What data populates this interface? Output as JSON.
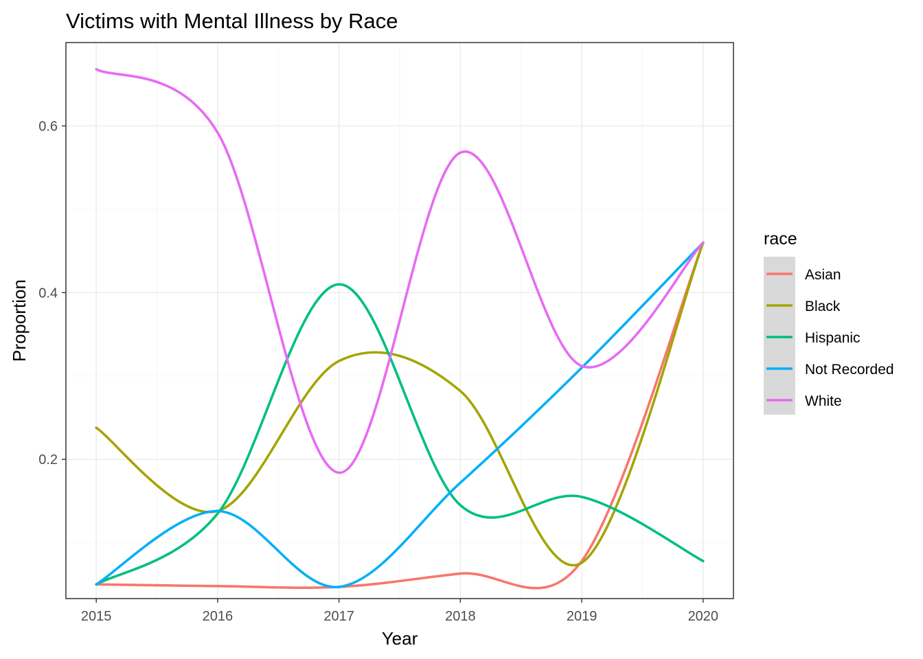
{
  "chart_data": {
    "type": "line",
    "title": "Victims with Mental Illness by Race",
    "xlabel": "Year",
    "ylabel": "Proportion",
    "x": [
      2015,
      2016,
      2017,
      2018,
      2019,
      2020
    ],
    "xlim": [
      2014.75,
      2020.25
    ],
    "ylim": [
      0.033,
      0.7
    ],
    "x_ticks": [
      "2015",
      "2016",
      "2017",
      "2018",
      "2019",
      "2020"
    ],
    "y_ticks": [
      0.2,
      0.4,
      0.6
    ],
    "y_tick_labels": [
      "0.2",
      "0.4",
      "0.6"
    ],
    "grid": true,
    "smoothed": true,
    "legend": {
      "title": "race",
      "position": "right"
    },
    "series": [
      {
        "name": "Asian",
        "color": "#F8766D",
        "values": [
          0.05,
          0.048,
          0.047,
          0.063,
          0.078,
          0.46
        ]
      },
      {
        "name": "Black",
        "color": "#A3A500",
        "values": [
          0.238,
          0.138,
          0.318,
          0.282,
          0.076,
          0.46
        ]
      },
      {
        "name": "Hispanic",
        "color": "#00BF7D",
        "values": [
          0.05,
          0.135,
          0.41,
          0.145,
          0.155,
          0.078
        ]
      },
      {
        "name": "Not Recorded",
        "color": "#00B0F6",
        "values": [
          0.05,
          0.138,
          0.047,
          0.172,
          0.31,
          0.46
        ]
      },
      {
        "name": "White",
        "color": "#E76BF3",
        "values": [
          0.668,
          0.592,
          0.184,
          0.568,
          0.312,
          0.46
        ]
      }
    ]
  }
}
